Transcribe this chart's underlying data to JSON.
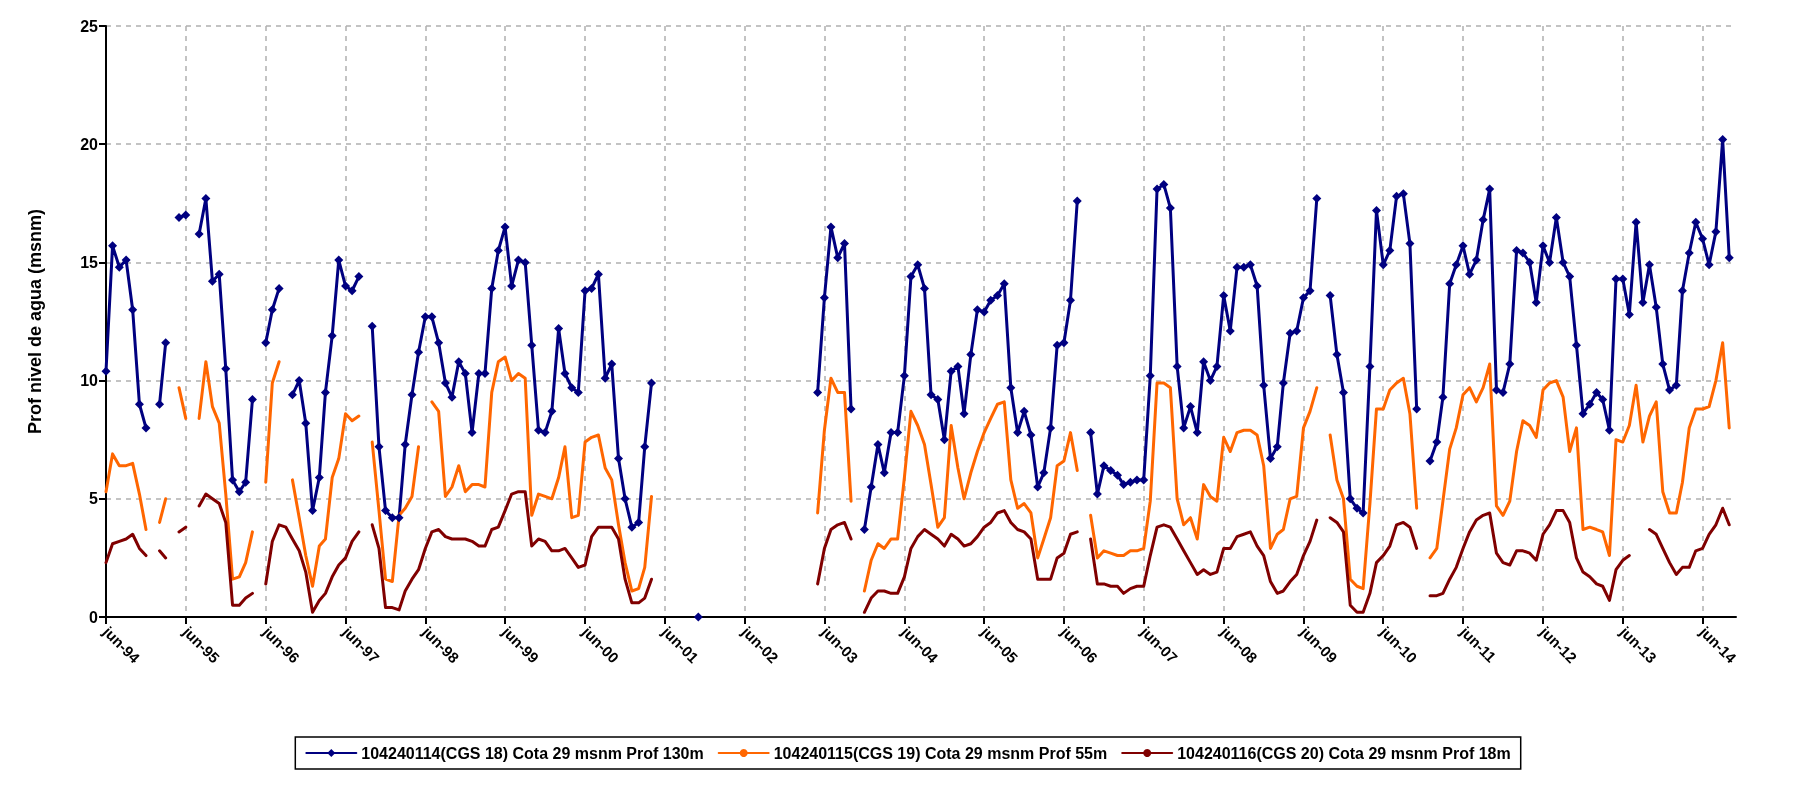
{
  "chart_data": {
    "type": "line",
    "ylabel": "Prof nivel de agua (msnm)",
    "ylim": [
      0,
      25
    ],
    "yticks": [
      0,
      5,
      10,
      15,
      20,
      25
    ],
    "xlim": [
      "1994-06",
      "2014-11"
    ],
    "xticks": [
      {
        "value": "1994-06",
        "label": "jun-94"
      },
      {
        "value": "1995-06",
        "label": "jun-95"
      },
      {
        "value": "1996-06",
        "label": "jun-96"
      },
      {
        "value": "1997-06",
        "label": "jun-97"
      },
      {
        "value": "1998-06",
        "label": "jun-98"
      },
      {
        "value": "1999-06",
        "label": "jun-99"
      },
      {
        "value": "2000-06",
        "label": "jun-00"
      },
      {
        "value": "2001-06",
        "label": "jun-01"
      },
      {
        "value": "2002-06",
        "label": "jun-02"
      },
      {
        "value": "2003-06",
        "label": "jun-03"
      },
      {
        "value": "2004-06",
        "label": "jun-04"
      },
      {
        "value": "2005-06",
        "label": "jun-05"
      },
      {
        "value": "2006-06",
        "label": "jun-06"
      },
      {
        "value": "2007-06",
        "label": "jun-07"
      },
      {
        "value": "2008-06",
        "label": "jun-08"
      },
      {
        "value": "2009-06",
        "label": "jun-09"
      },
      {
        "value": "2010-06",
        "label": "jun-10"
      },
      {
        "value": "2011-06",
        "label": "jun-11"
      },
      {
        "value": "2012-06",
        "label": "jun-12"
      },
      {
        "value": "2013-06",
        "label": "jun-13"
      },
      {
        "value": "2014-06",
        "label": "jun-14"
      }
    ],
    "grid": true,
    "legend": "bottom",
    "line_style": "solid",
    "x": [
      "1994-06",
      "1994-07",
      "1994-08",
      "1994-09",
      "1994-10",
      "1994-11",
      "1994-12",
      "1995-01",
      "1995-02",
      "1995-03",
      "1995-04",
      "1995-05",
      "1995-06",
      "1995-07",
      "1995-08",
      "1995-09",
      "1995-10",
      "1995-11",
      "1995-12",
      "1996-01",
      "1996-02",
      "1996-03",
      "1996-04",
      "1996-05",
      "1996-06",
      "1996-07",
      "1996-08",
      "1996-09",
      "1996-10",
      "1996-11",
      "1996-12",
      "1997-01",
      "1997-02",
      "1997-03",
      "1997-04",
      "1997-05",
      "1997-06",
      "1997-07",
      "1997-08",
      "1997-09",
      "1997-10",
      "1997-11",
      "1997-12",
      "1998-01",
      "1998-02",
      "1998-03",
      "1998-04",
      "1998-05",
      "1998-06",
      "1998-07",
      "1998-08",
      "1998-09",
      "1998-10",
      "1998-11",
      "1998-12",
      "1999-01",
      "1999-02",
      "1999-03",
      "1999-04",
      "1999-05",
      "1999-06",
      "1999-07",
      "1999-08",
      "1999-09",
      "1999-10",
      "1999-11",
      "1999-12",
      "2000-01",
      "2000-02",
      "2000-03",
      "2000-04",
      "2000-05",
      "2000-06",
      "2000-07",
      "2000-08",
      "2000-09",
      "2000-10",
      "2000-11",
      "2000-12",
      "2001-01",
      "2001-02",
      "2001-03",
      "2001-04",
      "2001-05",
      "2001-11",
      "2001-12",
      "2003-05",
      "2003-06",
      "2003-07",
      "2003-08",
      "2003-09",
      "2003-10",
      "2003-11",
      "2003-12",
      "2004-01",
      "2004-02",
      "2004-03",
      "2004-04",
      "2004-05",
      "2004-06",
      "2004-07",
      "2004-08",
      "2004-09",
      "2004-10",
      "2004-11",
      "2004-12",
      "2005-01",
      "2005-02",
      "2005-03",
      "2005-04",
      "2005-05",
      "2005-06",
      "2005-07",
      "2005-08",
      "2005-09",
      "2005-10",
      "2005-11",
      "2005-12",
      "2006-01",
      "2006-02",
      "2006-03",
      "2006-04",
      "2006-05",
      "2006-06",
      "2006-07",
      "2006-08",
      "2006-09",
      "2006-10",
      "2006-11",
      "2006-12",
      "2007-01",
      "2007-02",
      "2007-03",
      "2007-04",
      "2007-05",
      "2007-06",
      "2007-07",
      "2007-08",
      "2007-09",
      "2007-10",
      "2007-11",
      "2007-12",
      "2008-01",
      "2008-02",
      "2008-03",
      "2008-04",
      "2008-05",
      "2008-06",
      "2008-07",
      "2008-08",
      "2008-09",
      "2008-10",
      "2008-11",
      "2008-12",
      "2009-01",
      "2009-02",
      "2009-03",
      "2009-04",
      "2009-05",
      "2009-06",
      "2009-07",
      "2009-08",
      "2009-09",
      "2009-10",
      "2009-11",
      "2009-12",
      "2010-01",
      "2010-02",
      "2010-03",
      "2010-04",
      "2010-05",
      "2010-06",
      "2010-07",
      "2010-08",
      "2010-09",
      "2010-10",
      "2010-11",
      "2010-12",
      "2011-01",
      "2011-02",
      "2011-03",
      "2011-04",
      "2011-05",
      "2011-06",
      "2011-07",
      "2011-08",
      "2011-09",
      "2011-10",
      "2011-11",
      "2011-12",
      "2012-01",
      "2012-02",
      "2012-03",
      "2012-04",
      "2012-05",
      "2012-06",
      "2012-07",
      "2012-08",
      "2012-09",
      "2012-10",
      "2012-11",
      "2012-12",
      "2013-01",
      "2013-02",
      "2013-03",
      "2013-04",
      "2013-05",
      "2013-06",
      "2013-07",
      "2013-08",
      "2013-09",
      "2013-10",
      "2013-11",
      "2013-12",
      "2014-01",
      "2014-02",
      "2014-03",
      "2014-04",
      "2014-05",
      "2014-06",
      "2014-07",
      "2014-08",
      "2014-09",
      "2014-10"
    ],
    "series": [
      {
        "name": "104240114(CGS 18) Cota 29 msnm Prof 130m",
        "color": "#000080",
        "marker": "diamond",
        "values": [
          10.4,
          15.7,
          14.8,
          15.1,
          13.0,
          9.0,
          8.0,
          null,
          9.0,
          11.6,
          null,
          16.9,
          17.0,
          null,
          16.2,
          17.7,
          14.2,
          14.5,
          10.5,
          5.8,
          5.3,
          5.7,
          9.2,
          null,
          11.6,
          13.0,
          13.9,
          null,
          9.4,
          10.0,
          8.2,
          4.5,
          5.9,
          9.5,
          11.9,
          15.1,
          14.0,
          13.8,
          14.4,
          null,
          12.3,
          7.2,
          4.5,
          4.2,
          4.2,
          7.3,
          9.4,
          11.2,
          12.7,
          12.7,
          11.6,
          9.9,
          9.3,
          10.8,
          10.3,
          7.8,
          10.3,
          10.3,
          13.9,
          15.5,
          16.5,
          14.0,
          15.1,
          15.0,
          11.5,
          7.9,
          7.8,
          8.7,
          12.2,
          10.3,
          9.7,
          9.5,
          13.8,
          13.9,
          14.5,
          10.1,
          10.7,
          6.7,
          5.0,
          3.8,
          4.0,
          7.2,
          9.9,
          null,
          0,
          null,
          9.5,
          13.5,
          16.5,
          15.2,
          15.8,
          8.8,
          null,
          3.7,
          5.5,
          7.3,
          6.1,
          7.8,
          7.8,
          10.2,
          14.4,
          14.9,
          13.9,
          9.4,
          9.2,
          7.5,
          10.4,
          10.6,
          8.6,
          11.1,
          13.0,
          12.9,
          13.4,
          13.6,
          14.1,
          9.7,
          7.8,
          8.7,
          7.7,
          5.5,
          6.1,
          8.0,
          11.5,
          11.6,
          13.4,
          17.6,
          null,
          7.8,
          5.2,
          6.4,
          6.2,
          6.0,
          5.6,
          5.7,
          5.8,
          5.8,
          10.2,
          18.1,
          18.3,
          17.3,
          10.6,
          8.0,
          8.9,
          7.8,
          10.8,
          10.0,
          10.6,
          13.6,
          12.1,
          14.8,
          14.8,
          14.9,
          14.0,
          9.8,
          6.7,
          7.2,
          9.9,
          12.0,
          12.1,
          13.5,
          13.8,
          17.7,
          null,
          13.6,
          11.1,
          9.5,
          5.0,
          4.6,
          4.4,
          10.6,
          17.2,
          14.9,
          15.5,
          17.8,
          17.9,
          15.8,
          8.8,
          null,
          6.6,
          7.4,
          9.3,
          14.1,
          14.9,
          15.7,
          14.5,
          15.1,
          16.8,
          18.1,
          9.6,
          9.5,
          10.7,
          15.5,
          15.4,
          15.0,
          13.3,
          15.7,
          15.0,
          16.9,
          15.0,
          14.4,
          11.5,
          8.6,
          9.0,
          9.5,
          9.2,
          7.9,
          14.3,
          14.3,
          12.8,
          16.7,
          13.3,
          14.9,
          13.1,
          10.7,
          9.6,
          9.8,
          13.8,
          15.4,
          16.7,
          16.0,
          14.9,
          16.3,
          20.2,
          15.2
        ]
      },
      {
        "name": "104240115(CGS 19) Cota 29 msnm Prof 55m",
        "color": "#ff6600",
        "marker": "none",
        "values": [
          5.3,
          6.9,
          6.4,
          6.4,
          6.5,
          5.2,
          3.7,
          null,
          4.0,
          5.0,
          null,
          9.7,
          8.4,
          null,
          8.4,
          10.8,
          8.9,
          8.2,
          5.2,
          1.6,
          1.7,
          2.3,
          3.6,
          null,
          5.7,
          9.9,
          10.8,
          null,
          5.8,
          4.2,
          2.6,
          1.3,
          3.0,
          3.3,
          5.9,
          6.7,
          8.6,
          8.3,
          8.5,
          null,
          7.4,
          4.5,
          1.6,
          1.5,
          4.3,
          4.6,
          5.1,
          7.2,
          null,
          9.1,
          8.7,
          5.1,
          5.5,
          6.4,
          5.3,
          5.6,
          5.6,
          5.5,
          9.5,
          10.8,
          11.0,
          10.0,
          10.3,
          10.1,
          4.3,
          5.2,
          5.1,
          5.0,
          5.9,
          7.2,
          4.2,
          4.3,
          7.4,
          7.6,
          7.7,
          6.3,
          5.8,
          3.9,
          2.3,
          1.1,
          1.2,
          2.1,
          5.1,
          null,
          null,
          null,
          4.4,
          7.9,
          10.1,
          9.5,
          9.5,
          4.9,
          null,
          1.1,
          2.4,
          3.1,
          2.9,
          3.3,
          3.3,
          5.9,
          8.7,
          8.1,
          7.3,
          5.6,
          3.8,
          4.2,
          8.1,
          6.3,
          5.0,
          6.1,
          7.0,
          7.8,
          8.4,
          9.0,
          9.1,
          5.8,
          4.6,
          4.8,
          4.4,
          2.5,
          3.3,
          4.2,
          6.4,
          6.6,
          7.8,
          6.2,
          null,
          4.3,
          2.5,
          2.8,
          2.7,
          2.6,
          2.6,
          2.8,
          2.8,
          2.9,
          4.9,
          9.9,
          9.9,
          9.7,
          5.0,
          3.9,
          4.2,
          3.3,
          5.6,
          5.1,
          4.9,
          7.6,
          7.0,
          7.8,
          7.9,
          7.9,
          7.7,
          6.4,
          2.9,
          3.5,
          3.7,
          5.0,
          5.1,
          8.0,
          8.7,
          9.7,
          null,
          7.7,
          5.8,
          5.0,
          1.6,
          1.3,
          1.2,
          4.8,
          8.8,
          8.8,
          9.6,
          9.9,
          10.1,
          8.6,
          4.6,
          null,
          2.5,
          2.9,
          4.9,
          7.1,
          8.0,
          9.4,
          9.7,
          9.1,
          9.7,
          10.7,
          4.7,
          4.3,
          4.9,
          7.0,
          8.3,
          8.1,
          7.6,
          9.6,
          9.9,
          10.0,
          9.3,
          7.0,
          8.0,
          3.7,
          3.8,
          3.7,
          3.6,
          2.6,
          7.5,
          7.4,
          8.1,
          9.8,
          7.4,
          8.5,
          9.1,
          5.3,
          4.4,
          4.4,
          5.7,
          8.0,
          8.8,
          8.8,
          8.9,
          10.0,
          11.6,
          8.0
        ]
      },
      {
        "name": "104240116(CGS 20) Cota 29 msnm Prof 18m",
        "color": "#800000",
        "marker": "none",
        "values": [
          2.3,
          3.1,
          3.2,
          3.3,
          3.5,
          2.9,
          2.6,
          null,
          2.8,
          2.5,
          null,
          3.6,
          3.8,
          null,
          4.7,
          5.2,
          5.0,
          4.8,
          4.0,
          0.5,
          0.5,
          0.8,
          1.0,
          null,
          1.4,
          3.2,
          3.9,
          3.8,
          3.3,
          2.8,
          1.9,
          0.2,
          0.7,
          1.0,
          1.7,
          2.2,
          2.5,
          3.2,
          3.6,
          null,
          3.9,
          2.9,
          0.4,
          0.4,
          0.3,
          1.1,
          1.6,
          2.0,
          2.9,
          3.6,
          3.7,
          3.4,
          3.3,
          3.3,
          3.3,
          3.2,
          3.0,
          3.0,
          3.7,
          3.8,
          4.5,
          5.2,
          5.3,
          5.3,
          3.0,
          3.3,
          3.2,
          2.8,
          2.8,
          2.9,
          2.5,
          2.1,
          2.2,
          3.4,
          3.8,
          3.8,
          3.8,
          3.3,
          1.6,
          0.6,
          0.6,
          0.8,
          1.6,
          null,
          null,
          null,
          1.4,
          2.9,
          3.7,
          3.9,
          4.0,
          3.3,
          null,
          0.2,
          0.8,
          1.1,
          1.1,
          1.0,
          1.0,
          1.7,
          2.9,
          3.4,
          3.7,
          3.5,
          3.3,
          3.0,
          3.5,
          3.3,
          3.0,
          3.1,
          3.4,
          3.8,
          4.0,
          4.4,
          4.5,
          4.0,
          3.7,
          3.6,
          3.3,
          1.6,
          1.6,
          1.6,
          2.5,
          2.7,
          3.5,
          3.6,
          null,
          3.3,
          1.4,
          1.4,
          1.3,
          1.3,
          1.0,
          1.2,
          1.3,
          1.3,
          2.6,
          3.8,
          3.9,
          3.8,
          3.3,
          2.8,
          2.3,
          1.8,
          2.0,
          1.8,
          1.9,
          2.9,
          2.9,
          3.4,
          3.5,
          3.6,
          3.0,
          2.6,
          1.5,
          1.0,
          1.1,
          1.5,
          1.8,
          2.6,
          3.2,
          4.1,
          null,
          4.2,
          4.0,
          3.6,
          0.5,
          0.2,
          0.2,
          1.0,
          2.3,
          2.6,
          3.0,
          3.9,
          4.0,
          3.8,
          2.9,
          null,
          0.9,
          0.9,
          1.0,
          1.6,
          2.1,
          2.9,
          3.6,
          4.1,
          4.3,
          4.4,
          2.7,
          2.3,
          2.2,
          2.8,
          2.8,
          2.7,
          2.4,
          3.5,
          3.9,
          4.5,
          4.5,
          4.0,
          2.5,
          1.9,
          1.7,
          1.4,
          1.3,
          0.7,
          2.0,
          2.4,
          2.6,
          null,
          null,
          3.7,
          3.5,
          2.9,
          2.3,
          1.8,
          2.1,
          2.1,
          2.8,
          2.9,
          3.5,
          3.9,
          4.6,
          3.9
        ]
      }
    ]
  }
}
